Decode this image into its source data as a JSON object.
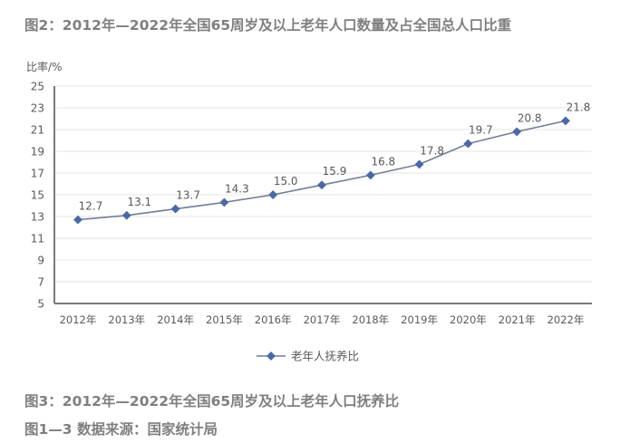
{
  "headings": {
    "top": "图2：2012年—2022年全国65周岁及以上老年人口数量及占全国总人口比重",
    "figure_caption": "图3：2012年—2022年全国65周岁及以上老年人口抚养比",
    "source": "图1—3 数据来源：国家统计局"
  },
  "colors": {
    "line": "#6f7f95",
    "marker": "#4a69a6",
    "gridline": "#e6e6e6",
    "axis": "#7a7a7a",
    "text": "#595959",
    "heading": "#7f7f7f"
  },
  "chart_data": {
    "type": "line",
    "title": "图3：2012年—2022年全国65周岁及以上老年人口抚养比",
    "xlabel": "",
    "ylabel": "比率/%",
    "categories": [
      "2012年",
      "2013年",
      "2014年",
      "2015年",
      "2016年",
      "2017年",
      "2018年",
      "2019年",
      "2020年",
      "2021年",
      "2022年"
    ],
    "series": [
      {
        "name": "老年人抚养比",
        "values": [
          12.7,
          13.1,
          13.7,
          14.3,
          15.0,
          15.9,
          16.8,
          17.8,
          19.7,
          20.8,
          21.8
        ]
      }
    ],
    "data_labels": [
      "12.7",
      "13.1",
      "13.7",
      "14.3",
      "15.0",
      "15.9",
      "16.8",
      "17.8",
      "19.7",
      "20.8",
      "21.8"
    ],
    "ylim": [
      5,
      25
    ],
    "yticks": [
      5,
      7,
      9,
      11,
      13,
      15,
      17,
      19,
      21,
      23,
      25
    ],
    "grid": true,
    "legend_position": "bottom",
    "legend": [
      "老年人抚养比"
    ]
  }
}
